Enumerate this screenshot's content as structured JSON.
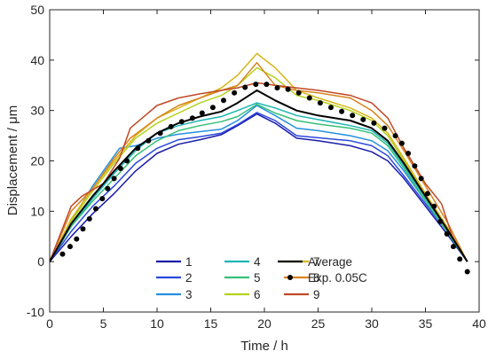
{
  "chart_data": {
    "type": "line",
    "title": "",
    "xlabel": "Time / h",
    "ylabel": "Displacement / μm",
    "xlim": [
      0,
      40
    ],
    "ylim": [
      -10,
      50
    ],
    "xticks": [
      0,
      5,
      10,
      15,
      20,
      25,
      30,
      35,
      40
    ],
    "yticks": [
      -10,
      0,
      10,
      20,
      30,
      40,
      50
    ],
    "grid": false,
    "legend_position": "bottom-center",
    "series": [
      {
        "name": "1",
        "color": "#1a1aaa",
        "width": 1.5,
        "x": [
          0,
          2,
          4,
          6,
          8,
          10,
          12,
          14,
          16,
          17.5,
          19.3,
          21,
          23,
          25,
          28,
          30,
          31.5,
          33,
          35,
          37,
          38.9
        ],
        "y": [
          0,
          5,
          9.5,
          13.5,
          18,
          21.5,
          23.3,
          24.2,
          25.2,
          27,
          29.3,
          27.5,
          24.5,
          24,
          23,
          21.8,
          20,
          16.5,
          11,
          5.5,
          0
        ]
      },
      {
        "name": "2",
        "color": "#2a48dd",
        "width": 1.5,
        "x": [
          0,
          2,
          4,
          6,
          8,
          10,
          12,
          14,
          16,
          17.5,
          19.3,
          21,
          23,
          25,
          28,
          30,
          31.5,
          33,
          35,
          37,
          38.9
        ],
        "y": [
          0,
          6,
          11,
          15,
          19.5,
          22.5,
          24.2,
          24.8,
          25.5,
          27.2,
          29.6,
          28,
          25,
          24.6,
          24,
          23,
          21,
          17,
          11.5,
          6,
          0
        ]
      },
      {
        "name": "3",
        "color": "#2590e0",
        "width": 1.5,
        "x": [
          0,
          2,
          4,
          6.5,
          8,
          10,
          12,
          14,
          16,
          17.5,
          19.3,
          21,
          23,
          25,
          28,
          30,
          31.5,
          33,
          35,
          37,
          38.9
        ],
        "y": [
          0,
          8,
          15,
          22.5,
          23,
          24.5,
          25.3,
          25.8,
          26.3,
          28,
          31,
          29,
          26.5,
          26,
          25,
          24,
          22,
          18,
          12,
          6,
          0
        ]
      },
      {
        "name": "4",
        "color": "#1eb4b4",
        "width": 1.5,
        "x": [
          0,
          2,
          4,
          6,
          8,
          10,
          12,
          14,
          16,
          17.5,
          19.3,
          21,
          23,
          25,
          28,
          30,
          31.5,
          33,
          35,
          37,
          38.9
        ],
        "y": [
          0,
          7,
          12.5,
          17.5,
          22,
          25.5,
          27,
          28,
          28.8,
          30,
          31.5,
          30.5,
          29,
          28.2,
          27,
          26,
          23.5,
          19,
          12.5,
          6.5,
          0
        ]
      },
      {
        "name": "5",
        "color": "#36c078",
        "width": 1.5,
        "x": [
          0,
          2,
          4,
          6,
          8,
          10,
          12,
          14,
          16,
          17.5,
          19.3,
          21,
          23,
          25,
          28,
          30,
          31.5,
          33,
          35,
          37,
          38.9
        ],
        "y": [
          0,
          7,
          12,
          16.5,
          21,
          24,
          26,
          27,
          27.8,
          28.8,
          31.2,
          29.5,
          28,
          27.3,
          26.5,
          25.5,
          23,
          18.5,
          12,
          6,
          0
        ]
      },
      {
        "name": "6",
        "color": "#b4d21e",
        "width": 1.5,
        "x": [
          0,
          2,
          4,
          6,
          8,
          10,
          12,
          14,
          16,
          17.5,
          19.3,
          21,
          23,
          25,
          28,
          30,
          31.5,
          33,
          35,
          37,
          38.9
        ],
        "y": [
          0,
          8,
          14,
          19.5,
          24.5,
          27.5,
          29.5,
          31.5,
          33,
          35,
          38.5,
          36.5,
          33,
          32,
          30,
          28,
          25,
          20,
          13,
          6.5,
          0
        ]
      },
      {
        "name": "7",
        "color": "#d9b418",
        "width": 1.5,
        "x": [
          0,
          2,
          4,
          6,
          8,
          10,
          12,
          14,
          16,
          17.5,
          19.3,
          21,
          23,
          25,
          28,
          30,
          31.5,
          33,
          35,
          37,
          38.9
        ],
        "y": [
          0,
          8.5,
          14.5,
          20,
          25,
          28.5,
          30.5,
          32.5,
          34.5,
          37,
          41.3,
          38.5,
          34,
          32.5,
          30.5,
          28.5,
          25.5,
          20.5,
          13.5,
          7,
          0
        ]
      },
      {
        "name": "8",
        "color": "#d9831e",
        "width": 1.5,
        "x": [
          0,
          2,
          4,
          6,
          7.5,
          10,
          12,
          14,
          16,
          17.5,
          19.3,
          21,
          23,
          25,
          28,
          30,
          31.5,
          33,
          35,
          37,
          38.9
        ],
        "y": [
          0,
          10,
          14.5,
          20.5,
          24.5,
          28.5,
          31,
          32.5,
          34,
          35,
          39.5,
          35,
          34,
          33.5,
          32.5,
          30,
          27,
          22,
          15,
          8,
          0
        ]
      },
      {
        "name": "9",
        "color": "#c04826",
        "width": 1.5,
        "x": [
          0,
          2,
          3,
          5,
          6.5,
          7.5,
          10,
          12,
          14,
          16,
          17.5,
          19.3,
          21,
          23,
          25,
          28,
          30,
          31.5,
          33,
          35,
          36.5,
          37.5,
          38.9
        ],
        "y": [
          0,
          11,
          13,
          15.5,
          20.5,
          26.5,
          31,
          32.5,
          33.3,
          34,
          34.5,
          35.5,
          35,
          34.5,
          34,
          33,
          31.5,
          28.5,
          22.5,
          15.5,
          11.5,
          5,
          0
        ]
      },
      {
        "name": "Average",
        "color": "#000000",
        "width": 2,
        "x": [
          0,
          2,
          4,
          6,
          8,
          10,
          12,
          14,
          16,
          17.5,
          19.3,
          21,
          23,
          25,
          28,
          30,
          31.5,
          33,
          35,
          37,
          38.9
        ],
        "y": [
          0,
          7.5,
          13,
          18,
          22.5,
          25.5,
          27.5,
          28.8,
          29.8,
          31.5,
          34,
          32,
          30,
          29,
          28,
          26.5,
          24,
          19.5,
          13,
          6.5,
          0
        ]
      }
    ],
    "scatter": {
      "name": "Exp. 0.05C",
      "color": "#000000",
      "x": [
        1.2,
        1.9,
        2.5,
        3.1,
        3.7,
        4.3,
        4.9,
        5.4,
        6.0,
        6.6,
        7.2,
        8.2,
        9.2,
        10.3,
        11.3,
        12.3,
        13.3,
        14.2,
        15.2,
        16.2,
        17.2,
        18.2,
        19.2,
        20.2,
        21.2,
        22.2,
        23.2,
        24.2,
        25.2,
        26.2,
        27.2,
        28.2,
        29.2,
        30.2,
        31.2,
        32.2,
        32.8,
        33.4,
        34.0,
        34.6,
        35.2,
        35.8,
        36.4,
        37.0,
        37.6,
        38.2,
        38.9
      ],
      "y": [
        1.5,
        3.0,
        4.5,
        6.5,
        8.5,
        10.5,
        12.5,
        14.5,
        16.5,
        18.5,
        20.0,
        22.5,
        24.0,
        25.5,
        26.8,
        27.8,
        28.5,
        29.5,
        30.6,
        32.0,
        33.5,
        34.6,
        35.2,
        35.2,
        34.5,
        34.2,
        33.5,
        32.5,
        31.5,
        30.6,
        29.8,
        29.0,
        28.2,
        27.5,
        26.5,
        25.0,
        23.5,
        21.5,
        19.0,
        16.5,
        13.5,
        11.0,
        8.0,
        5.5,
        3.0,
        0.5,
        -2.0
      ]
    }
  }
}
